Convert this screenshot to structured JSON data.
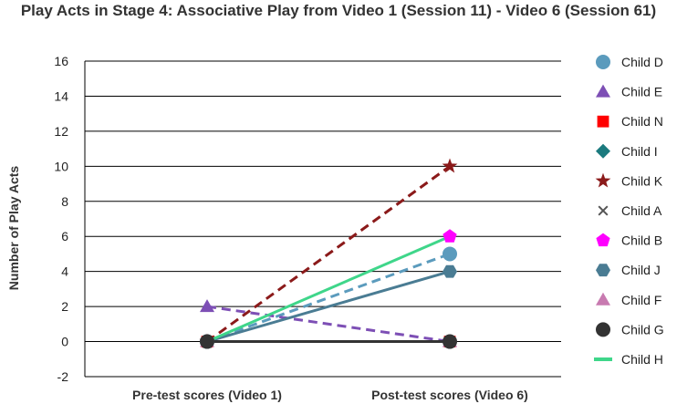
{
  "chart_data": {
    "type": "line",
    "title": "Play Acts in Stage 4: Associative Play from Video 1 (Session 11) - Video 6 (Session 61)",
    "xlabel": "",
    "ylabel": "Number of Play Acts",
    "categories": [
      "Pre-test scores (Video 1)",
      "Post-test scores (Video 6)"
    ],
    "ylim": [
      -2,
      16
    ],
    "yticks": [
      -2,
      0,
      2,
      4,
      6,
      8,
      10,
      12,
      14,
      16
    ],
    "grid": "horizontal",
    "legend_position": "right",
    "series": [
      {
        "name": "Child D",
        "values": [
          0,
          5
        ],
        "color": "#5b9bbd",
        "marker": "circle",
        "line": "dashed"
      },
      {
        "name": "Child E",
        "values": [
          2,
          0
        ],
        "color": "#7d4fb5",
        "marker": "triangle",
        "line": "dashed"
      },
      {
        "name": "Child N",
        "values": [
          0,
          0
        ],
        "color": "#ff0000",
        "marker": "square",
        "line": "solid"
      },
      {
        "name": "Child I",
        "values": [
          0,
          0
        ],
        "color": "#1b7a7e",
        "marker": "diamond",
        "line": "solid"
      },
      {
        "name": "Child K",
        "values": [
          0,
          10
        ],
        "color": "#8b1a1a",
        "marker": "star",
        "line": "dashed"
      },
      {
        "name": "Child A",
        "values": [
          0,
          0
        ],
        "color": "#555555",
        "marker": "x",
        "line": "dotted"
      },
      {
        "name": "Child B",
        "values": [
          0,
          6
        ],
        "color": "#ff00ff",
        "marker": "pentagon",
        "line": "none"
      },
      {
        "name": "Child J",
        "values": [
          0,
          4
        ],
        "color": "#4a7c93",
        "marker": "hexagon",
        "line": "solid"
      },
      {
        "name": "Child F",
        "values": [
          0,
          0
        ],
        "color": "#c87ab0",
        "marker": "triangle",
        "line": "solid"
      },
      {
        "name": "Child G",
        "values": [
          0,
          0
        ],
        "color": "#333333",
        "marker": "circle",
        "line": "solid"
      },
      {
        "name": "Child H",
        "values": [
          0,
          6
        ],
        "color": "#3fd68a",
        "marker": "none",
        "line": "solid"
      }
    ]
  }
}
